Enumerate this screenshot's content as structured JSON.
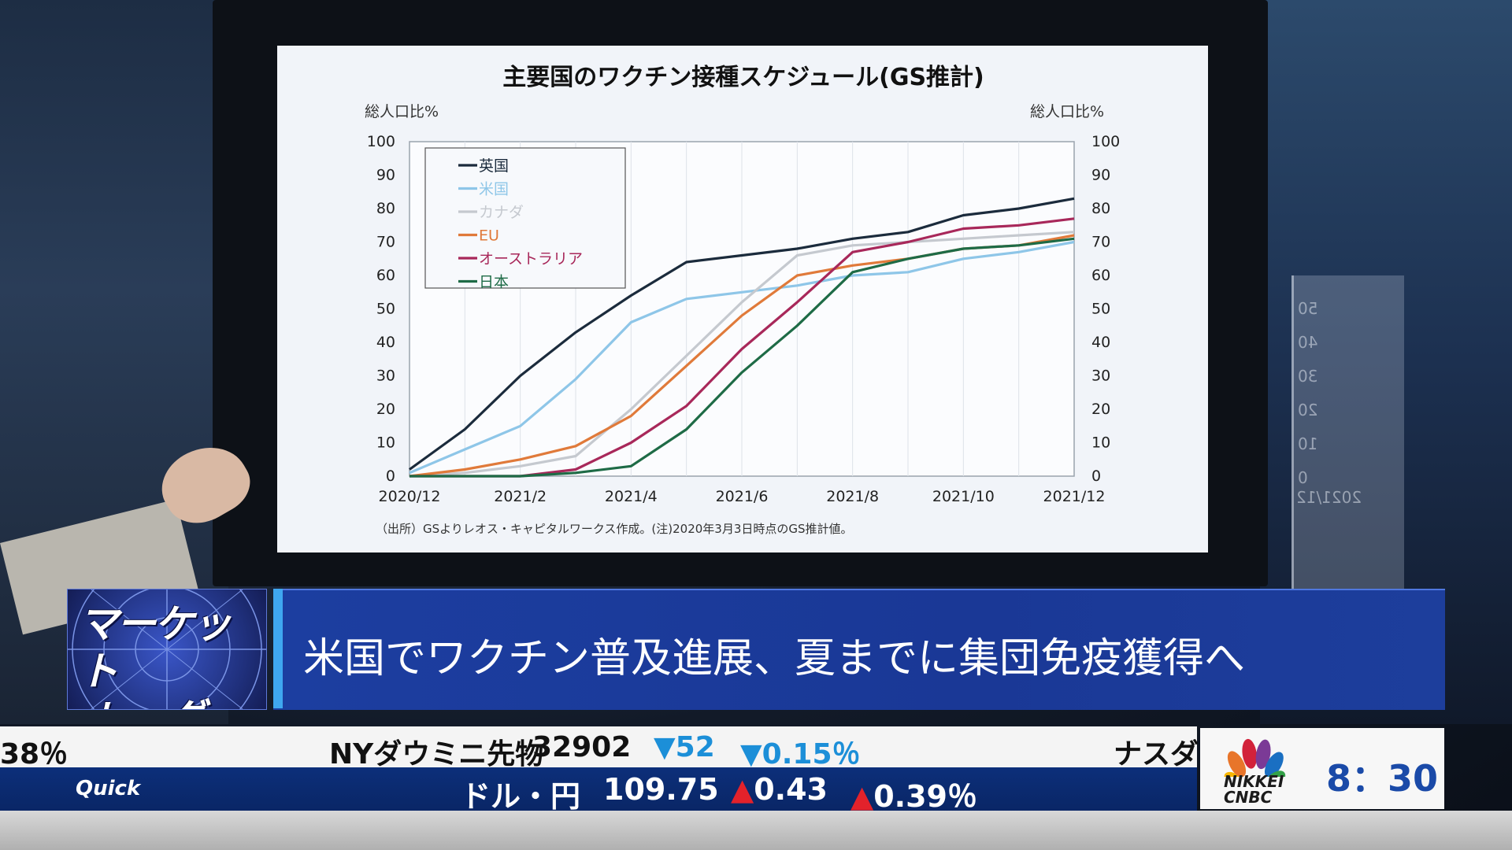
{
  "chart_data": {
    "type": "line",
    "title": "主要国のワクチン接種スケジュール(GS推計)",
    "ylabel_left": "総人口比%",
    "ylabel_right": "総人口比%",
    "xlabel": "",
    "ylim": [
      0,
      100
    ],
    "yticks": [
      "0",
      "10",
      "20",
      "30",
      "40",
      "50",
      "60",
      "70",
      "80",
      "90",
      "100"
    ],
    "x": [
      "2020/12",
      "2021/1",
      "2021/2",
      "2021/3",
      "2021/4",
      "2021/5",
      "2021/6",
      "2021/7",
      "2021/8",
      "2021/9",
      "2021/10",
      "2021/11",
      "2021/12"
    ],
    "xticks": [
      "2020/12",
      "2021/2",
      "2021/4",
      "2021/6",
      "2021/8",
      "2021/10",
      "2021/12"
    ],
    "grid": true,
    "legend_position": "top-left",
    "series": [
      {
        "name": "英国",
        "color": "#1b2b3c",
        "values": [
          2,
          14,
          30,
          43,
          54,
          64,
          66,
          68,
          71,
          73,
          78,
          80,
          83
        ]
      },
      {
        "name": "米国",
        "color": "#8ec6e8",
        "values": [
          1,
          8,
          15,
          29,
          46,
          53,
          55,
          57,
          60,
          61,
          65,
          67,
          70
        ]
      },
      {
        "name": "カナダ",
        "color": "#c5c9cf",
        "values": [
          0,
          1,
          3,
          6,
          20,
          36,
          52,
          66,
          69,
          70,
          71,
          72,
          73
        ]
      },
      {
        "name": "EU",
        "color": "#e07a3a",
        "values": [
          0,
          2,
          5,
          9,
          18,
          33,
          48,
          60,
          63,
          65,
          68,
          69,
          72
        ]
      },
      {
        "name": "オーストラリア",
        "color": "#a8285a",
        "values": [
          0,
          0,
          0,
          2,
          10,
          21,
          38,
          52,
          67,
          70,
          74,
          75,
          77
        ]
      },
      {
        "name": "日本",
        "color": "#1e6b46",
        "values": [
          0,
          0,
          0,
          1,
          3,
          14,
          31,
          45,
          61,
          65,
          68,
          69,
          71
        ]
      }
    ],
    "source_note": "（出所）GSよりレオス・キャピタルワークス作成。(注)2020年3月3日時点のGS推計値。"
  },
  "program": {
    "logo_line1": "マーケット",
    "logo_line2": "レーダー",
    "headline": "米国でワクチン普及進展、夏までに集団免疫獲得へ"
  },
  "ticker": {
    "top": {
      "prev_tail": "38％",
      "name": "NYダウミニ先物",
      "value": "32902",
      "change": "▼52",
      "pct": "▼0.15％",
      "next_head": "ナスダ"
    },
    "bottom": {
      "brand": "Quick",
      "name": "ドル・円",
      "value": "109.75",
      "change": "▲0.43",
      "pct": "▲0.39％"
    }
  },
  "broadcaster": {
    "name_line1": "NIKKEI",
    "name_line2": "CNBC",
    "time": "8：30"
  },
  "background_panel_ticks": [
    "50",
    "40",
    "30",
    "20",
    "10",
    "0"
  ],
  "background_panel_label": "2021/12"
}
